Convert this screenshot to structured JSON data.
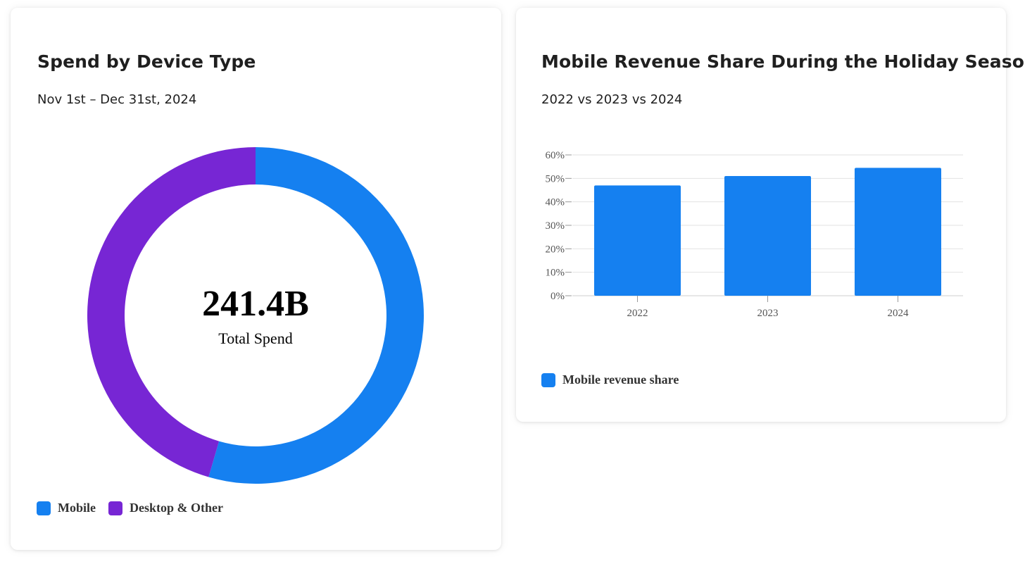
{
  "colors": {
    "mobile": "#1580f0",
    "desktop": "#7726d4",
    "bar": "#1580f0",
    "grid": "#e2e2e2",
    "axis": "#999999"
  },
  "donut_card": {
    "title": "Spend by Device Type",
    "subtitle": "Nov 1st – Dec 31st, 2024",
    "center_value": "241.4B",
    "center_label": "Total Spend"
  },
  "bar_card": {
    "title": "Mobile Revenue Share During the Holiday Season",
    "subtitle": "2022 vs 2023 vs 2024"
  },
  "chart_data": [
    {
      "type": "pie",
      "title": "Spend by Device Type",
      "subtitle": "Nov 1st – Dec 31st, 2024",
      "labels": [
        "Mobile",
        "Desktop & Other"
      ],
      "values": [
        54.5,
        45.5
      ],
      "total_label": "241.4B",
      "legend": "bottom-left"
    },
    {
      "type": "bar",
      "title": "Mobile Revenue Share During the Holiday Season",
      "subtitle": "2022 vs 2023 vs 2024",
      "categories": [
        "2022",
        "2023",
        "2024"
      ],
      "series": [
        {
          "name": "Mobile revenue share",
          "values": [
            47,
            51,
            54.5
          ]
        }
      ],
      "ylim": [
        0,
        60
      ],
      "yticks": [
        0,
        10,
        20,
        30,
        40,
        50,
        60
      ],
      "ytick_labels": [
        "0%",
        "10%",
        "20%",
        "30%",
        "40%",
        "50%",
        "60%"
      ],
      "grid": true,
      "legend": "bottom-left"
    }
  ]
}
